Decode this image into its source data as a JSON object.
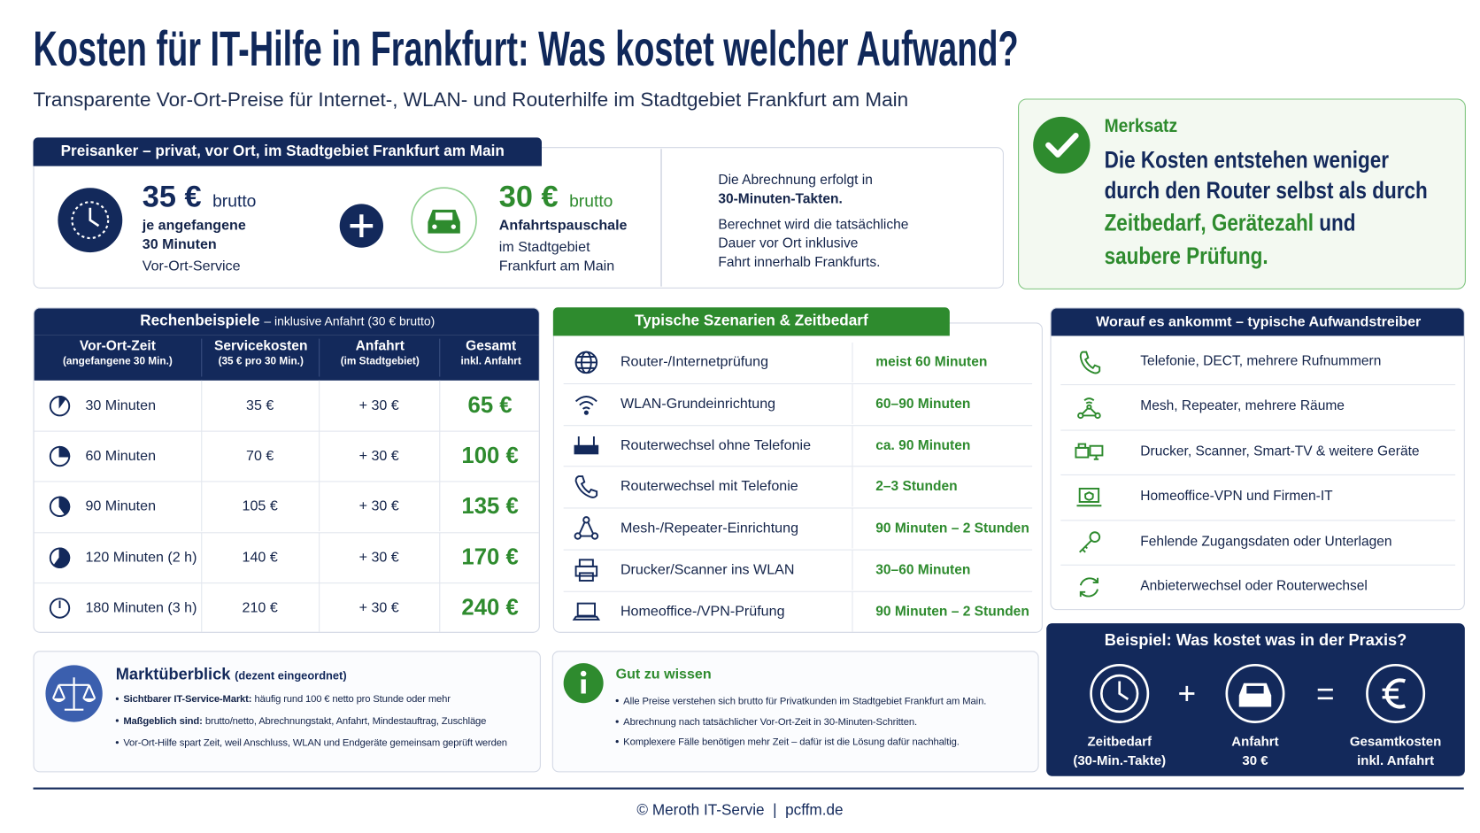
{
  "header": {
    "title": "Kosten für IT-Hilfe in Frankfurt: Was kostet welcher Aufwand?",
    "subtitle": "Transparente Vor-Ort-Preise für Internet-, WLAN- und Routerhilfe im Stadtgebiet Frankfurt am Main"
  },
  "price_anchor": {
    "heading": "Preisanker – privat, vor Ort, im Stadtgebiet Frankfurt am Main",
    "service": {
      "price": "35 €",
      "suffix": "brutto",
      "bold_lines": [
        "je angefangene",
        "30 Minuten"
      ],
      "lines": [
        "Vor-Ort-Service"
      ]
    },
    "travel": {
      "price": "30 €",
      "suffix": "brutto",
      "bold_lines": [
        "Anfahrtspauschale"
      ],
      "lines": [
        "im Stadtgebiet",
        "Frankfurt am Main"
      ]
    },
    "billing": {
      "lines": [
        "Die Abrechnung erfolgt in"
      ],
      "bold_lines": [
        "30-Minuten-Takten."
      ],
      "detail_lines": [
        "Berechnet wird die tatsächliche",
        "Dauer vor Ort inklusive",
        "Fahrt innerhalb Frankfurts."
      ]
    }
  },
  "merksatz": {
    "label": "Merksatz",
    "lines": [
      "Die Kosten entstehen weniger",
      "durch den Router selbst als durch"
    ],
    "highlight_1": "Zeitbedarf, Gerätezahl",
    "connector": "und",
    "highlight_2": "saubere Prüfung."
  },
  "calc_table": {
    "title": "Rechenbeispiele",
    "title_note": "– inklusive Anfahrt (30 € brutto)",
    "columns": [
      {
        "label": "Vor-Ort-Zeit",
        "sub": "(angefangene 30 Min.)"
      },
      {
        "label": "Servicekosten",
        "sub": "(35 € pro 30 Min.)"
      },
      {
        "label": "Anfahrt",
        "sub": "(im Stadtgebiet)"
      },
      {
        "label": "Gesamt",
        "sub": "inkl. Anfahrt"
      }
    ],
    "rows": [
      [
        "30 Minuten",
        "35 €",
        "+ 30 €",
        "65 €"
      ],
      [
        "60 Minuten",
        "70 €",
        "+ 30 €",
        "100 €"
      ],
      [
        "90 Minuten",
        "105 €",
        "+ 30 €",
        "135 €"
      ],
      [
        "120 Minuten (2 h)",
        "140 €",
        "+ 30 €",
        "170 €"
      ],
      [
        "180 Minuten (3 h)",
        "210 €",
        "+ 30 €",
        "240 €"
      ]
    ]
  },
  "scenarios": {
    "title": "Typische Szenarien & Zeitbedarf",
    "rows": [
      {
        "label": "Router-/Internetprüfung",
        "time": "meist 60 Minuten"
      },
      {
        "label": "WLAN-Grundeinrichtung",
        "time": "60–90 Minuten"
      },
      {
        "label": "Routerwechsel ohne Telefonie",
        "time": "ca. 90 Minuten"
      },
      {
        "label": "Routerwechsel mit Telefonie",
        "time": "2–3 Stunden"
      },
      {
        "label": "Mesh-/Repeater-Einrichtung",
        "time": "90 Minuten – 2 Stunden"
      },
      {
        "label": "Drucker/Scanner ins WLAN",
        "time": "30–60 Minuten"
      },
      {
        "label": "Homeoffice-/VPN-Prüfung",
        "time": "90 Minuten – 2 Stunden"
      }
    ]
  },
  "drivers": {
    "title": "Worauf es ankommt – typische Aufwandstreiber",
    "items": [
      "Telefonie, DECT, mehrere Rufnummern",
      "Mesh, Repeater, mehrere Räume",
      "Drucker, Scanner, Smart-TV & weitere Geräte",
      "Homeoffice-VPN und Firmen-IT",
      "Fehlende Zugangsdaten oder Unterlagen",
      "Anbieterwechsel oder Routerwechsel"
    ]
  },
  "market": {
    "title": "Marktüberblick",
    "note": "(dezent eingeordnet)",
    "bullets": [
      {
        "lead": "Sichtbarer IT-Service-Markt:",
        "text": "häufig rund 100 € netto pro Stunde oder mehr"
      },
      {
        "lead": "Maßgeblich sind:",
        "text": "brutto/netto, Abrechnungstakt, Anfahrt, Mindestauftrag, Zuschläge"
      },
      {
        "text": "Vor-Ort-Hilfe spart Zeit, weil Anschluss, WLAN und Endgeräte gemeinsam geprüft werden"
      }
    ]
  },
  "good_to_know": {
    "title": "Gut zu wissen",
    "bullets": [
      "Alle Preise verstehen sich brutto für Privatkunden im Stadtgebiet Frankfurt am Main.",
      "Abrechnung nach tatsächlicher Vor-Ort-Zeit in 30-Minuten-Schritten.",
      "Komplexere Fälle benötigen mehr Zeit – dafür ist die Lösung dafür nachhaltig."
    ]
  },
  "example": {
    "title": "Beispiel: Was kostet was in der Praxis?",
    "items": [
      {
        "label": "Zeitbedarf",
        "sub": "(30-Min.-Takte)"
      },
      {
        "label": "Anfahrt",
        "sub": "30 €"
      },
      {
        "label": "Gesamtkosten",
        "sub": "inkl. Anfahrt"
      }
    ]
  },
  "footer": {
    "copyright": "© Meroth IT-Servie",
    "separator": "|",
    "site": "pcffm.de"
  }
}
